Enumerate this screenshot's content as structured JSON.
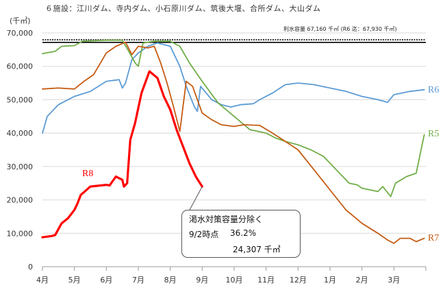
{
  "header": {
    "caption": "６施設：江川ダム、寺内ダム、小石原川ダム、筑後大堰、合所ダム、大山ダム",
    "unit": "(千㎥)",
    "capacity_note": "利水容量 67,160 千㎥ (R6 迄：67,930 千㎥)"
  },
  "callout": {
    "line1": "渇水対策容量分除く",
    "date": "9/2時点",
    "percent": "36.2%",
    "amount": "24,307 千㎥"
  },
  "colors": {
    "R8": "#ff0000",
    "R7": "#c55a11",
    "R6": "#5b9bd5",
    "R5": "#70ad47",
    "axis": "#999999",
    "grid": "#d9d9d9"
  },
  "chart_data": {
    "type": "line",
    "x_categories": [
      "4月",
      "5月",
      "6月",
      "7月",
      "8月",
      "9月",
      "10月",
      "11月",
      "12月",
      "1月",
      "2月",
      "3月"
    ],
    "y_ticks": [
      "0",
      "10,000",
      "20,000",
      "30,000",
      "40,000",
      "50,000",
      "60,000",
      "70,000"
    ],
    "ylim": [
      0,
      70000
    ],
    "capacity_lines": [
      67160,
      67930
    ],
    "series": [
      {
        "name": "R6",
        "points": [
          [
            0,
            40000
          ],
          [
            0.15,
            45000
          ],
          [
            0.5,
            48500
          ],
          [
            1,
            51000
          ],
          [
            1.5,
            52500
          ],
          [
            2,
            55500
          ],
          [
            2.4,
            56000
          ],
          [
            2.5,
            53500
          ],
          [
            2.6,
            55000
          ],
          [
            2.8,
            62000
          ],
          [
            3,
            64000
          ],
          [
            3.3,
            66000
          ],
          [
            3.6,
            67000
          ],
          [
            4,
            66000
          ],
          [
            4.3,
            60000
          ],
          [
            4.5,
            54000
          ],
          [
            4.75,
            48000
          ],
          [
            4.85,
            46500
          ],
          [
            4.95,
            54000
          ],
          [
            5.3,
            50000
          ],
          [
            5.6,
            48500
          ],
          [
            5.9,
            47800
          ],
          [
            6.2,
            48500
          ],
          [
            6.6,
            48800
          ],
          [
            6.8,
            50000
          ],
          [
            7.2,
            52000
          ],
          [
            7.6,
            54500
          ],
          [
            8,
            55000
          ],
          [
            8.5,
            54500
          ],
          [
            9,
            53500
          ],
          [
            9.5,
            52500
          ],
          [
            10,
            51000
          ],
          [
            10.5,
            50000
          ],
          [
            10.8,
            49200
          ],
          [
            11.0,
            51500
          ],
          [
            11.5,
            52500
          ],
          [
            11.95,
            53000
          ]
        ]
      },
      {
        "name": "R5",
        "points": [
          [
            0,
            63800
          ],
          [
            0.4,
            64500
          ],
          [
            0.6,
            66000
          ],
          [
            1,
            66200
          ],
          [
            1.25,
            67500
          ],
          [
            2,
            67800
          ],
          [
            2.5,
            67800
          ],
          [
            2.7,
            64500
          ],
          [
            2.9,
            61000
          ],
          [
            3,
            60000
          ],
          [
            3.15,
            67000
          ],
          [
            3.5,
            67500
          ],
          [
            4,
            67500
          ],
          [
            4.3,
            66000
          ],
          [
            4.6,
            61000
          ],
          [
            5,
            55500
          ],
          [
            5.5,
            49000
          ],
          [
            6,
            45000
          ],
          [
            6.5,
            41000
          ],
          [
            7,
            40000
          ],
          [
            7.3,
            38500
          ],
          [
            7.6,
            37500
          ],
          [
            8,
            36500
          ],
          [
            8.4,
            35000
          ],
          [
            8.8,
            33000
          ],
          [
            9.2,
            29000
          ],
          [
            9.6,
            25000
          ],
          [
            9.85,
            24500
          ],
          [
            10.0,
            23500
          ],
          [
            10.5,
            22500
          ],
          [
            10.65,
            24000
          ],
          [
            10.9,
            21000
          ],
          [
            11.05,
            25000
          ],
          [
            11.4,
            27000
          ],
          [
            11.7,
            28000
          ],
          [
            11.85,
            35000
          ],
          [
            11.95,
            39500
          ]
        ]
      },
      {
        "name": "R7",
        "points": [
          [
            0,
            53200
          ],
          [
            0.5,
            53500
          ],
          [
            1,
            53200
          ],
          [
            1.3,
            55500
          ],
          [
            1.6,
            57500
          ],
          [
            2,
            64000
          ],
          [
            2.3,
            66000
          ],
          [
            2.6,
            67200
          ],
          [
            2.8,
            63500
          ],
          [
            3,
            66000
          ],
          [
            3.3,
            65500
          ],
          [
            3.5,
            66000
          ],
          [
            3.7,
            61000
          ],
          [
            3.9,
            55000
          ],
          [
            4.1,
            48000
          ],
          [
            4.3,
            40500
          ],
          [
            4.5,
            55500
          ],
          [
            4.7,
            54000
          ],
          [
            5,
            46000
          ],
          [
            5.3,
            44000
          ],
          [
            5.6,
            42500
          ],
          [
            6,
            42000
          ],
          [
            6.3,
            42500
          ],
          [
            6.8,
            42300
          ],
          [
            7.2,
            40000
          ],
          [
            7.6,
            37500
          ],
          [
            8,
            35000
          ],
          [
            8.5,
            29000
          ],
          [
            9,
            23000
          ],
          [
            9.5,
            17000
          ],
          [
            10,
            13000
          ],
          [
            10.5,
            10000
          ],
          [
            10.8,
            8000
          ],
          [
            11.0,
            7000
          ],
          [
            11.2,
            8500
          ],
          [
            11.5,
            8500
          ],
          [
            11.7,
            7500
          ],
          [
            11.95,
            8500
          ]
        ]
      },
      {
        "name": "R8",
        "points": [
          [
            0,
            8800
          ],
          [
            0.3,
            9200
          ],
          [
            0.4,
            9500
          ],
          [
            0.6,
            13000
          ],
          [
            0.8,
            14500
          ],
          [
            1,
            17000
          ],
          [
            1.1,
            19000
          ],
          [
            1.2,
            21500
          ],
          [
            1.5,
            24000
          ],
          [
            2,
            24500
          ],
          [
            2.1,
            24300
          ],
          [
            2.3,
            27000
          ],
          [
            2.5,
            26000
          ],
          [
            2.55,
            24000
          ],
          [
            2.65,
            25000
          ],
          [
            2.75,
            38000
          ],
          [
            2.9,
            43000
          ],
          [
            3.1,
            52000
          ],
          [
            3.35,
            58500
          ],
          [
            3.6,
            56500
          ],
          [
            3.8,
            51000
          ],
          [
            4,
            47000
          ],
          [
            4.2,
            41000
          ],
          [
            4.4,
            36000
          ],
          [
            4.6,
            31000
          ],
          [
            4.8,
            27000
          ],
          [
            5,
            24000
          ]
        ]
      }
    ],
    "series_labels": [
      "R8",
      "R7",
      "R6",
      "R5"
    ]
  }
}
